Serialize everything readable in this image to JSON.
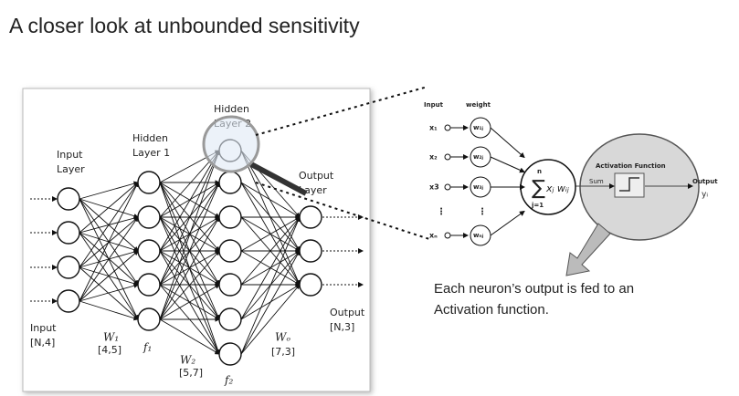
{
  "header": {
    "title": "A closer look at unbounded sensitivity"
  },
  "network": {
    "input_layer": "Input Layer",
    "hidden_layer_1": "Hidden Layer 1",
    "hidden_layer_2": "Hidden Layer 2",
    "output_layer": "Output Layer",
    "input": {
      "label": "Input",
      "shape": "[N,4]"
    },
    "w1": {
      "label": "W₁",
      "shape": "[4,5]"
    },
    "f1": "f₁",
    "w2": {
      "label": "W₂",
      "shape": "[5,7]"
    },
    "f2": "f₂",
    "wo": {
      "label": "Wₒ",
      "shape": "[7,3]"
    },
    "output": {
      "label": "Output",
      "shape": "[N,3]"
    }
  },
  "neuron": {
    "input_header": "Input",
    "weight_header": "weight",
    "inputs": [
      "x₁",
      "x₂",
      "x3",
      "xₙ"
    ],
    "weights": [
      "w₁ⱼ",
      "w₂ⱼ",
      "w₃ⱼ",
      "wₙⱼ"
    ],
    "sum": {
      "symbol": "∑",
      "upper": "n",
      "lower": "j=1",
      "term": "xⱼ wᵢⱼ"
    },
    "activation": "Activation Function",
    "sum_label": "Sum",
    "output": "Output",
    "output_var": "yᵢ"
  },
  "caption": {
    "lines": [
      "Each neuron’s output is fed to an",
      "Activation function."
    ]
  }
}
